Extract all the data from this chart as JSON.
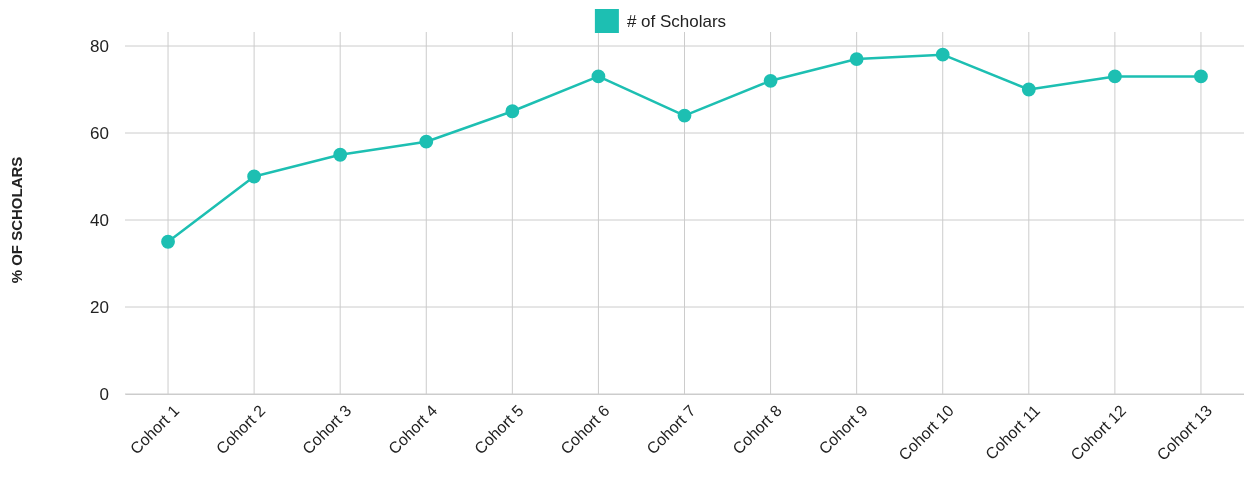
{
  "chart_data": {
    "type": "line",
    "ylabel": "% OF SCHOLARS",
    "categories": [
      "Cohort 1",
      "Cohort 2",
      "Cohort 3",
      "Cohort 4",
      "Cohort 5",
      "Cohort 6",
      "Cohort 7",
      "Cohort 8",
      "Cohort 9",
      "Cohort 10",
      "Cohort 11",
      "Cohort 12",
      "Cohort 13"
    ],
    "series": [
      {
        "name": "# of Scholars",
        "color": "#1dbfb2",
        "values": [
          35,
          50,
          55,
          58,
          65,
          73,
          64,
          72,
          77,
          78,
          70,
          73,
          73
        ]
      }
    ],
    "ylim": [
      0,
      80
    ],
    "yticks": [
      0,
      20,
      40,
      60,
      80
    ],
    "grid": true,
    "legend": "top",
    "marker": "circle",
    "line_style": "solid"
  }
}
